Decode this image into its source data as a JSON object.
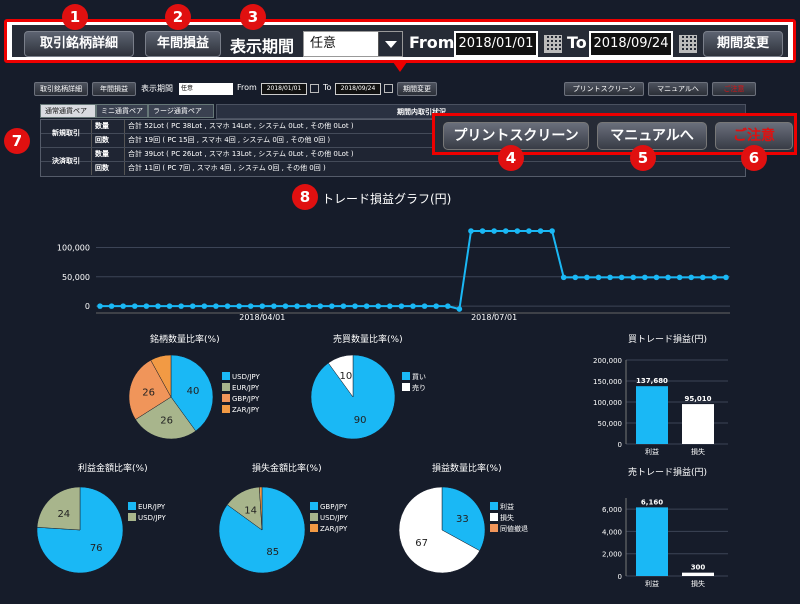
{
  "zoom_toolbar": {
    "detail_button": "取引銘柄詳細",
    "annual_button": "年間損益",
    "period_label": "表示期間",
    "period_value": "任意",
    "from_label": "From",
    "from_date": "2018/01/01",
    "to_label": "To",
    "to_date": "2018/09/24",
    "change_button": "期間変更"
  },
  "badges": [
    "1",
    "2",
    "3",
    "4",
    "5",
    "6",
    "7",
    "8"
  ],
  "toolbar": {
    "detail_button": "取引銘柄詳細",
    "annual_button": "年間損益",
    "period_label": "表示期間",
    "period_value": "任意",
    "from_label": "From",
    "from_date": "2018/01/01",
    "to_label": "To",
    "to_date": "2018/09/24",
    "change_button": "期間変更",
    "print_button": "プリントスクリーン",
    "manual_button": "マニュアルへ",
    "notice_button": "ご注意"
  },
  "callout": {
    "print_button": "プリントスクリーン",
    "manual_button": "マニュアルへ",
    "notice_button": "ご注意"
  },
  "table": {
    "tabs": [
      "通常通貨ペア",
      "ミニ通貨ペア",
      "ラージ通貨ペア"
    ],
    "period_header": "期間内取引状況",
    "rows": [
      {
        "group": "新規取引",
        "kind": "数量",
        "text": "合計 52Lot ( PC 38Lot , スマホ 14Lot , システム 0Lot , その他 0Lot )"
      },
      {
        "group": "",
        "kind": "回数",
        "text": "合計 19回 ( PC 15回 , スマホ 4回 , システム 0回 , その他 0回 )"
      },
      {
        "group": "決済取引",
        "kind": "数量",
        "text": "合計 39Lot ( PC 26Lot , スマホ 13Lot , システム 0Lot , その他 0Lot )"
      },
      {
        "group": "",
        "kind": "回数",
        "text": "合計 11回 ( PC 7回 , スマホ 4回 , システム 0回 , その他 0回 )"
      }
    ]
  },
  "colors": {
    "cyan": "#1ab8f5",
    "olive": "#a8b58c",
    "orange": "#f0955a",
    "zar": "#f29a44",
    "white": "#ffffff",
    "red": "#e01010"
  },
  "chart_data": [
    {
      "type": "line",
      "title": "トレード損益グラフ(円)",
      "x_ticks": [
        "2018/04/01",
        "2018/07/01"
      ],
      "y_ticks": [
        "0",
        "50,000",
        "100,000"
      ],
      "ylim": [
        -10000,
        140000
      ],
      "values": [
        0,
        0,
        0,
        0,
        0,
        0,
        0,
        0,
        0,
        0,
        0,
        0,
        0,
        0,
        0,
        0,
        0,
        0,
        0,
        0,
        0,
        0,
        0,
        0,
        0,
        0,
        0,
        0,
        0,
        0,
        0,
        -5000,
        128000,
        128000,
        128000,
        128000,
        128000,
        128000,
        128000,
        128000,
        49000,
        49000,
        49000,
        49000,
        49000,
        49000,
        49000,
        49000,
        49000,
        49000,
        49000,
        49000,
        49000,
        49000,
        49000
      ],
      "grid": true
    },
    {
      "type": "pie",
      "title": "銘柄数量比率(%)",
      "labels": [
        "USD/JPY",
        "EUR/JPY",
        "GBP/JPY",
        "ZAR/JPY"
      ],
      "values": [
        40,
        26,
        26,
        8
      ],
      "value_labels": [
        "40",
        "26",
        "26",
        ""
      ]
    },
    {
      "type": "pie",
      "title": "売買数量比率(%)",
      "labels": [
        "買い",
        "売り"
      ],
      "values": [
        90,
        10
      ],
      "value_labels": [
        "90",
        "10"
      ]
    },
    {
      "type": "bar",
      "title": "買トレード損益(円)",
      "categories": [
        "利益",
        "損失"
      ],
      "values": [
        137680,
        95010
      ],
      "value_labels": [
        "137,680",
        "95,010"
      ],
      "ylim": [
        0,
        200000
      ],
      "y_ticks": [
        "0",
        "50,000",
        "100,000",
        "150,000",
        "200,000"
      ]
    },
    {
      "type": "pie",
      "title": "利益金額比率(%)",
      "labels": [
        "EUR/JPY",
        "USD/JPY"
      ],
      "values": [
        76,
        24
      ],
      "value_labels": [
        "76",
        "24"
      ]
    },
    {
      "type": "pie",
      "title": "損失金額比率(%)",
      "labels": [
        "GBP/JPY",
        "USD/JPY",
        "ZAR/JPY"
      ],
      "values": [
        85,
        14,
        1
      ],
      "value_labels": [
        "85",
        "14",
        ""
      ]
    },
    {
      "type": "pie",
      "title": "損益数量比率(%)",
      "labels": [
        "利益",
        "損失",
        "同値撤退"
      ],
      "values": [
        33,
        67,
        0
      ],
      "value_labels": [
        "33",
        "67",
        ""
      ]
    },
    {
      "type": "bar",
      "title": "売トレード損益(円)",
      "categories": [
        "利益",
        "損失"
      ],
      "values": [
        6160,
        300
      ],
      "value_labels": [
        "6,160",
        "300"
      ],
      "ylim": [
        0,
        7000
      ],
      "y_ticks": [
        "0",
        "2,000",
        "4,000",
        "6,000"
      ]
    }
  ]
}
